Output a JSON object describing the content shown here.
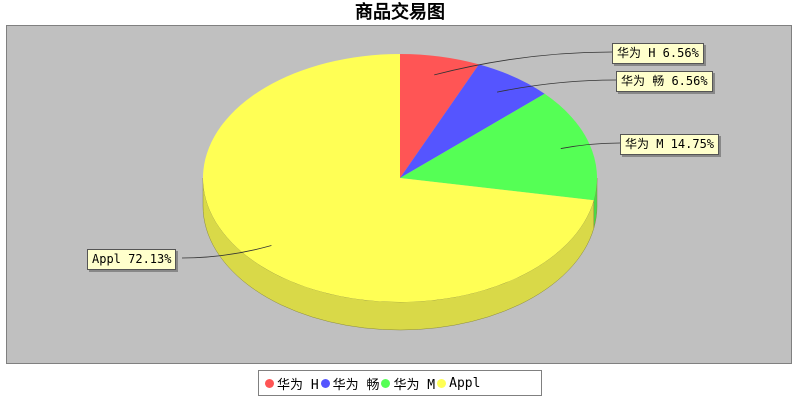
{
  "chart_data": {
    "type": "pie",
    "title": "商品交易图",
    "three_d": true,
    "legend_position": "bottom",
    "slices": [
      {
        "name": "华为 H",
        "value": 6.56,
        "label": "华为 H 6.56%",
        "color": "#ff5555"
      },
      {
        "name": "华为 畅",
        "value": 6.56,
        "label": "华为 畅 6.56%",
        "color": "#5555ff"
      },
      {
        "name": "华为 M",
        "value": 14.75,
        "label": "华为 M 14.75%",
        "color": "#55ff55"
      },
      {
        "name": "Appl",
        "value": 72.13,
        "label": "Appl 72.13%",
        "color": "#ffff55"
      }
    ]
  },
  "legend": {
    "items": [
      {
        "label": "华为 H",
        "color": "#ff5555"
      },
      {
        "label": "华为 畅",
        "color": "#5555ff"
      },
      {
        "label": "华为 M",
        "color": "#55ff55"
      },
      {
        "label": "Appl",
        "color": "#ffff55"
      }
    ]
  },
  "colors": {
    "plot_background": "#c0c0c0"
  }
}
